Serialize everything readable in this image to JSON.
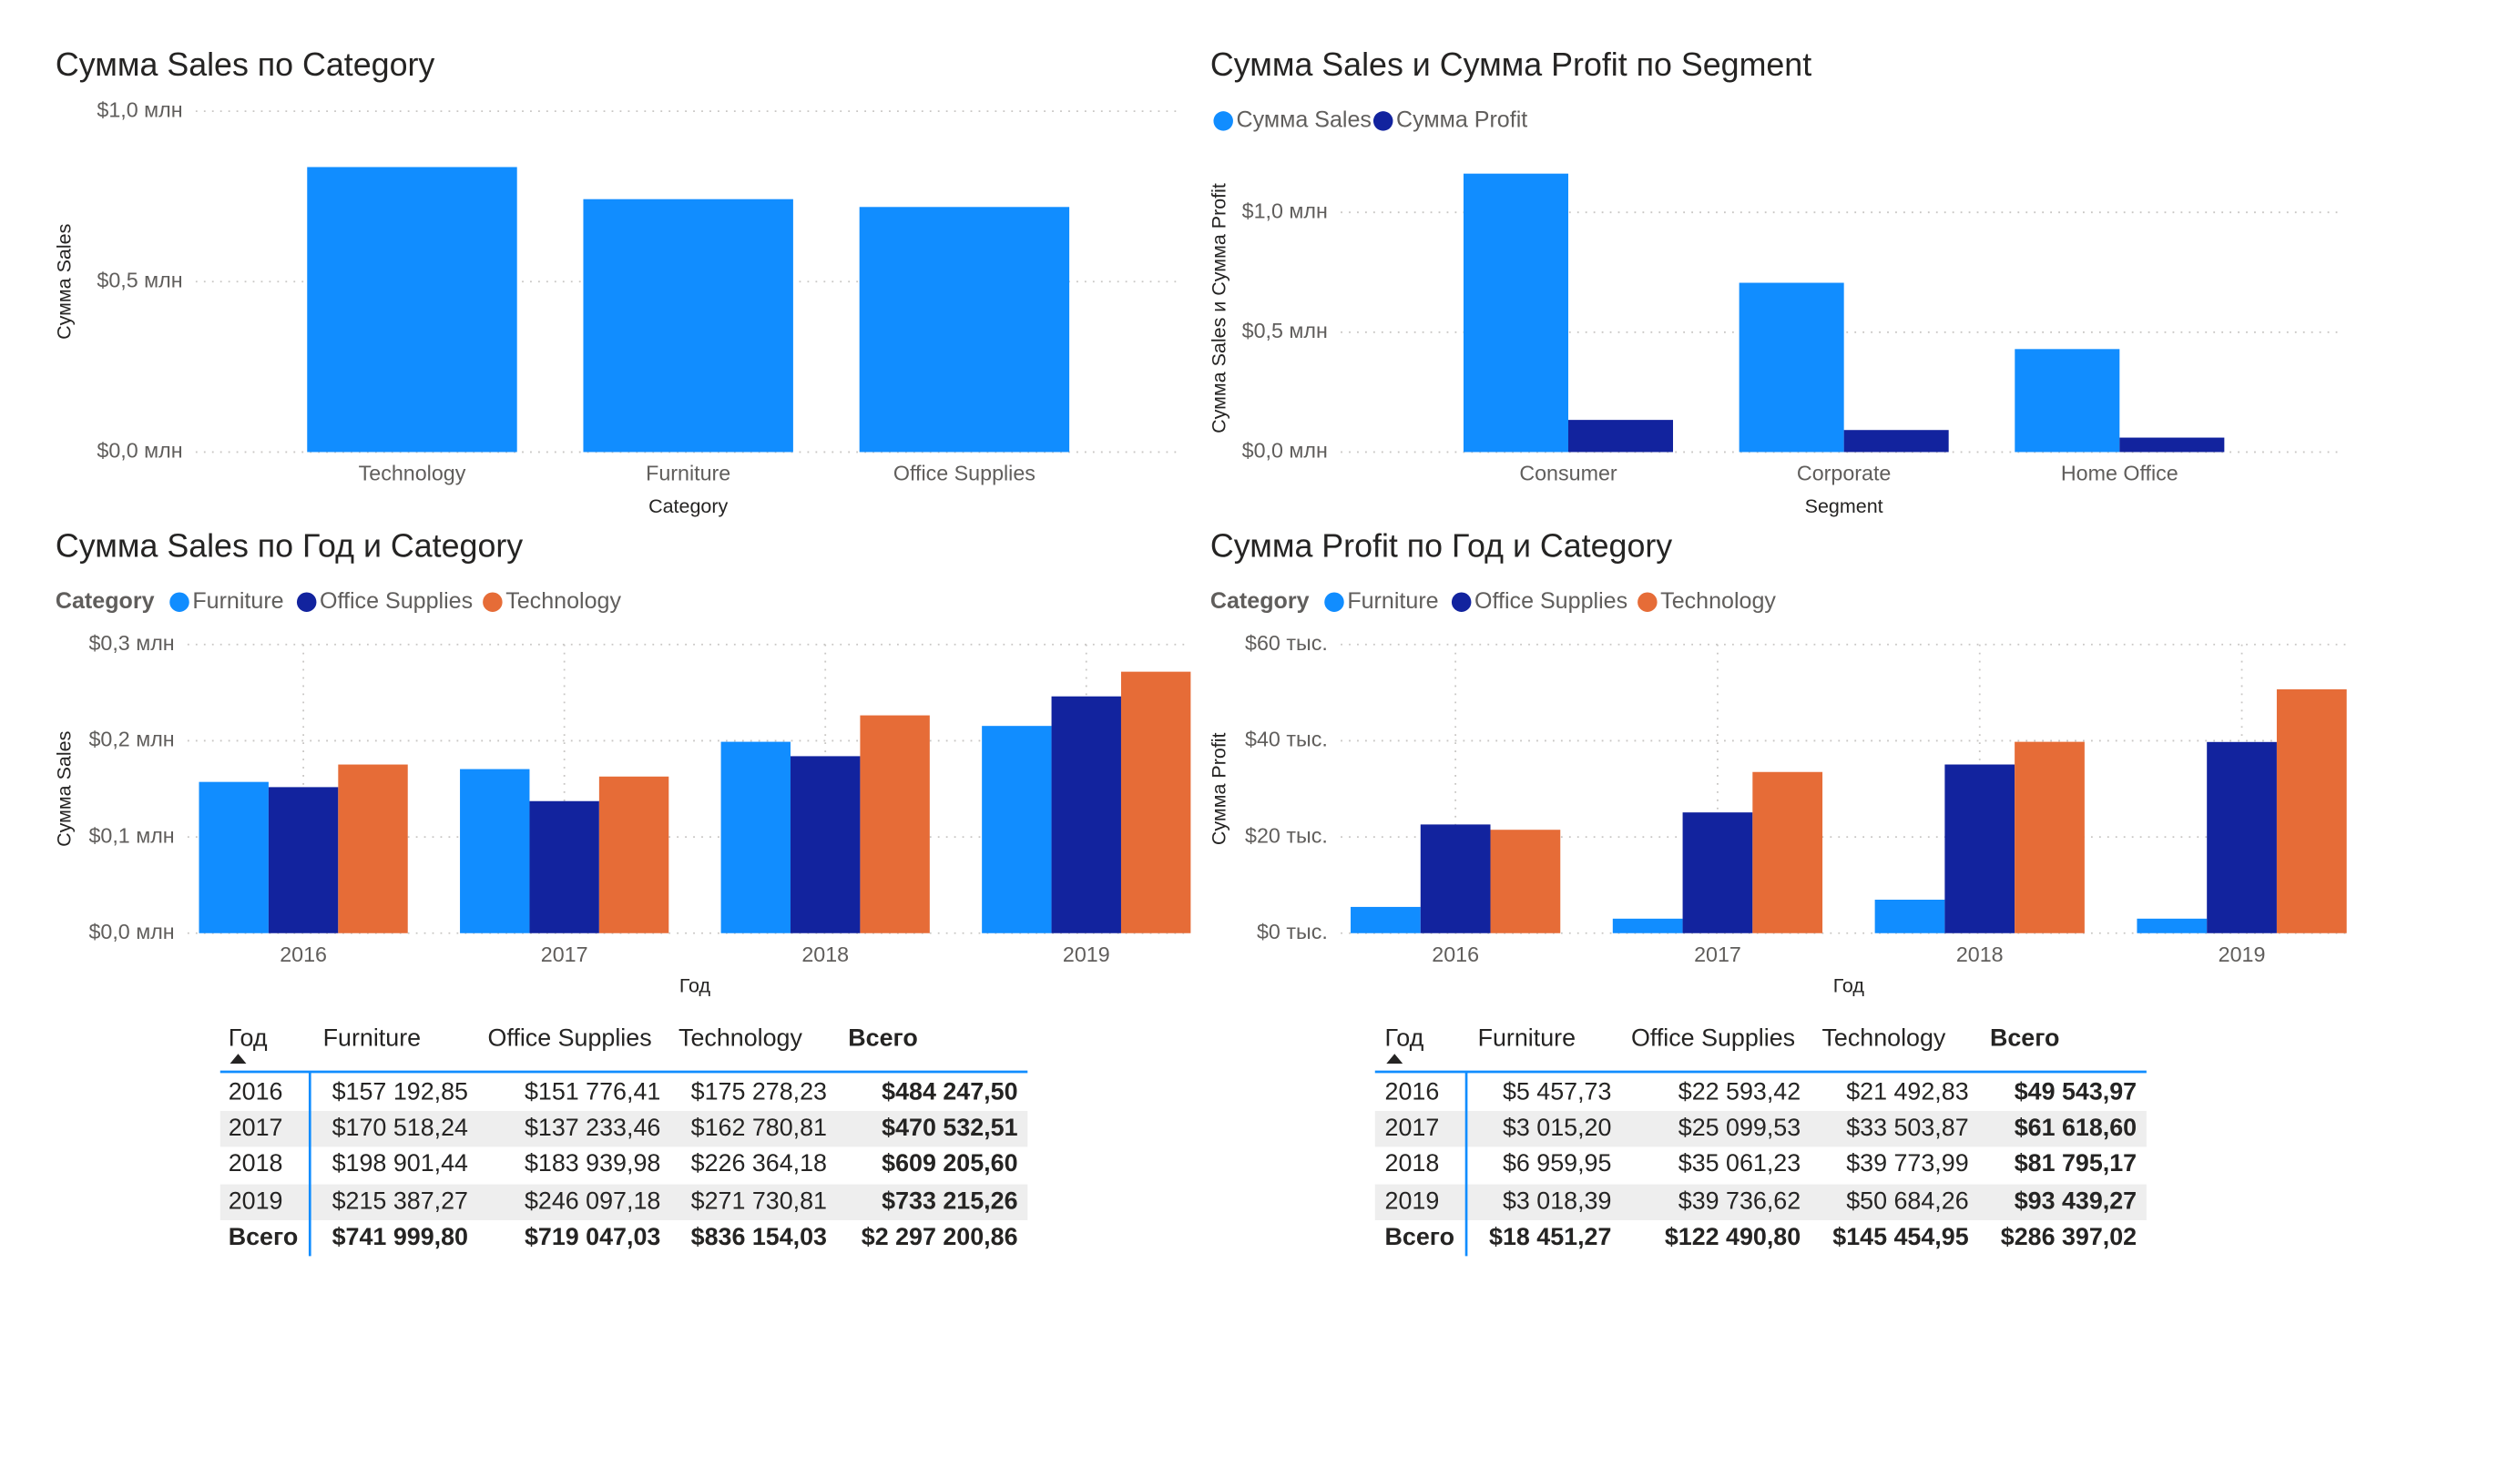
{
  "chart_data": [
    {
      "type": "bar",
      "title": "Сумма Sales по Category",
      "x_label": "Category",
      "y_label": "Сумма Sales",
      "categories": [
        "Technology",
        "Furniture",
        "Office Supplies"
      ],
      "values": [
        836154.03,
        741999.8,
        719047.03
      ],
      "color": "#118DFF",
      "ylim": [
        0,
        1000000
      ],
      "yticks": [
        {
          "value": 0,
          "label": "$0,0 млн"
        },
        {
          "value": 500000,
          "label": "$0,5 млн"
        },
        {
          "value": 1000000,
          "label": "$1,0 млн"
        }
      ],
      "grid": true
    },
    {
      "type": "grouped_bar",
      "title": "Сумма Sales и Сумма Profit по Segment",
      "x_label": "Segment",
      "y_label": "Сумма Sales и Сумма Profit",
      "categories": [
        "Consumer",
        "Corporate",
        "Home Office"
      ],
      "series": [
        {
          "name": "Сумма Sales",
          "color": "#118DFF",
          "values": [
            1161401,
            706146,
            429653
          ]
        },
        {
          "name": "Сумма Profit",
          "color": "#12239E",
          "values": [
            134119,
            91979,
            60299
          ]
        }
      ],
      "ylim": [
        0,
        1200000
      ],
      "yticks": [
        {
          "value": 0,
          "label": "$0,0 млн"
        },
        {
          "value": 500000,
          "label": "$0,5 млн"
        },
        {
          "value": 1000000,
          "label": "$1,0 млн"
        }
      ],
      "grid": true
    },
    {
      "type": "grouped_bar",
      "title": "Сумма Sales по Год и Category",
      "x_label": "Год",
      "y_label": "Сумма Sales",
      "legend_title": "Category",
      "categories": [
        "2016",
        "2017",
        "2018",
        "2019"
      ],
      "series": [
        {
          "name": "Furniture",
          "color": "#118DFF",
          "values": [
            157192.85,
            170518.24,
            198901.44,
            215387.27
          ]
        },
        {
          "name": "Office Supplies",
          "color": "#12239E",
          "values": [
            151776.41,
            137233.46,
            183939.98,
            246097.18
          ]
        },
        {
          "name": "Technology",
          "color": "#E66C37",
          "values": [
            175278.23,
            162780.81,
            226364.18,
            271730.81
          ]
        }
      ],
      "ylim": [
        0,
        300000
      ],
      "yticks": [
        {
          "value": 0,
          "label": "$0,0 млн"
        },
        {
          "value": 100000,
          "label": "$0,1 млн"
        },
        {
          "value": 200000,
          "label": "$0,2 млн"
        },
        {
          "value": 300000,
          "label": "$0,3 млн"
        }
      ],
      "grid": true
    },
    {
      "type": "grouped_bar",
      "title": "Сумма Profit по Год и Category",
      "x_label": "Год",
      "y_label": "Сумма Profit",
      "legend_title": "Category",
      "categories": [
        "2016",
        "2017",
        "2018",
        "2019"
      ],
      "series": [
        {
          "name": "Furniture",
          "color": "#118DFF",
          "values": [
            5457.73,
            3015.2,
            6959.95,
            3018.39
          ]
        },
        {
          "name": "Office Supplies",
          "color": "#12239E",
          "values": [
            22593.42,
            25099.53,
            35061.23,
            39736.62
          ]
        },
        {
          "name": "Technology",
          "color": "#E66C37",
          "values": [
            21492.83,
            33503.87,
            39773.99,
            50684.26
          ]
        }
      ],
      "ylim": [
        0,
        60000
      ],
      "yticks": [
        {
          "value": 0,
          "label": "$0 тыс."
        },
        {
          "value": 20000,
          "label": "$20 тыс."
        },
        {
          "value": 40000,
          "label": "$40 тыс."
        },
        {
          "value": 60000,
          "label": "$60 тыс."
        }
      ],
      "grid": true
    }
  ],
  "tables": [
    {
      "header": [
        "Год",
        "Furniture",
        "Office Supplies",
        "Technology",
        "Всего"
      ],
      "rows": [
        [
          "2016",
          "$157 192,85",
          "$151 776,41",
          "$175 278,23",
          "$484 247,50"
        ],
        [
          "2017",
          "$170 518,24",
          "$137 233,46",
          "$162 780,81",
          "$470 532,51"
        ],
        [
          "2018",
          "$198 901,44",
          "$183 939,98",
          "$226 364,18",
          "$609 205,60"
        ],
        [
          "2019",
          "$215 387,27",
          "$246 097,18",
          "$271 730,81",
          "$733 215,26"
        ]
      ],
      "total": [
        "Всего",
        "$741 999,80",
        "$719 047,03",
        "$836 154,03",
        "$2 297 200,86"
      ]
    },
    {
      "header": [
        "Год",
        "Furniture",
        "Office Supplies",
        "Technology",
        "Всего"
      ],
      "rows": [
        [
          "2016",
          "$5 457,73",
          "$22 593,42",
          "$21 492,83",
          "$49 543,97"
        ],
        [
          "2017",
          "$3 015,20",
          "$25 099,53",
          "$33 503,87",
          "$61 618,60"
        ],
        [
          "2018",
          "$6 959,95",
          "$35 061,23",
          "$39 773,99",
          "$81 795,17"
        ],
        [
          "2019",
          "$3 018,39",
          "$39 736,62",
          "$50 684,26",
          "$93 439,27"
        ]
      ],
      "total": [
        "Всего",
        "$18 451,27",
        "$122 490,80",
        "$145 454,95",
        "$286 397,02"
      ]
    }
  ]
}
